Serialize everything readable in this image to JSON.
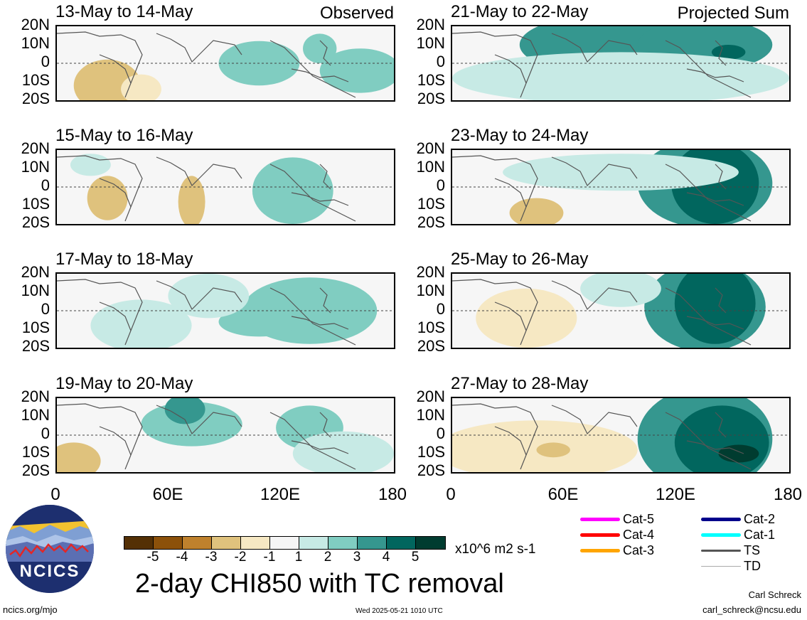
{
  "panels": [
    {
      "title": "13-May to 14-May",
      "tag": "Observed"
    },
    {
      "title": "21-May to 22-May",
      "tag": "Projected Sum"
    },
    {
      "title": "15-May to 16-May",
      "tag": ""
    },
    {
      "title": "23-May to 24-May",
      "tag": ""
    },
    {
      "title": "17-May to 18-May",
      "tag": ""
    },
    {
      "title": "25-May to 26-May",
      "tag": ""
    },
    {
      "title": "19-May to 20-May",
      "tag": ""
    },
    {
      "title": "27-May to 28-May",
      "tag": ""
    }
  ],
  "lat_labels": [
    "20N",
    "10N",
    "0",
    "10S",
    "20S"
  ],
  "lon_labels": [
    "0",
    "60E",
    "120E",
    "180"
  ],
  "colorbar": {
    "colors": [
      "#543005",
      "#8c510a",
      "#bf812d",
      "#dfc27d",
      "#f6e8c3",
      "#f5f5f5",
      "#c7eae5",
      "#80cdc1",
      "#35978f",
      "#01665e",
      "#003c30"
    ],
    "labels": [
      "-5",
      "-4",
      "-3",
      "-2",
      "-1",
      "1",
      "2",
      "3",
      "4",
      "5"
    ],
    "units": "x10^6 m2 s-1"
  },
  "title": "2-day CHI850 with TC removal",
  "tc_legend": [
    {
      "label": "Cat-5",
      "color": "#ff00ff"
    },
    {
      "label": "Cat-4",
      "color": "#ff0000"
    },
    {
      "label": "Cat-3",
      "color": "#ffa500"
    },
    {
      "label": "Cat-2",
      "color": "#00008b"
    },
    {
      "label": "Cat-1",
      "color": "#00ffff"
    },
    {
      "label": "TS",
      "color": "#555555"
    },
    {
      "label": "TD",
      "color": "#aaaaaa"
    }
  ],
  "logo_text": "NCICS",
  "footer": {
    "url": "ncics.org/mjo",
    "timestamp": "Wed 2025-05-21 1010 UTC",
    "author": "Carl Schreck",
    "email": "carl_schreck@ncsu.edu"
  }
}
